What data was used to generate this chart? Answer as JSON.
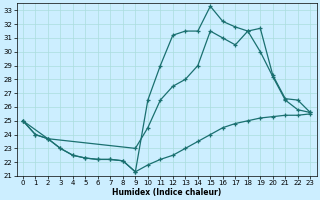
{
  "xlabel": "Humidex (Indice chaleur)",
  "bg_color": "#cceeff",
  "grid_color": "#aadddd",
  "line_color": "#1a7070",
  "xlim": [
    -0.5,
    23.5
  ],
  "ylim": [
    21,
    33.5
  ],
  "yticks": [
    21,
    22,
    23,
    24,
    25,
    26,
    27,
    28,
    29,
    30,
    31,
    32,
    33
  ],
  "xticks": [
    0,
    1,
    2,
    3,
    4,
    5,
    6,
    7,
    8,
    9,
    10,
    11,
    12,
    13,
    14,
    15,
    16,
    17,
    18,
    19,
    20,
    21,
    22,
    23
  ],
  "line1_x": [
    0,
    1,
    2,
    3,
    4,
    5,
    6,
    7,
    8,
    9,
    10,
    11,
    12,
    13,
    14,
    15,
    16,
    17,
    18,
    19,
    20,
    21,
    22,
    23
  ],
  "line1_y": [
    25,
    24,
    23.7,
    23.0,
    22.5,
    22.3,
    22.2,
    22.2,
    22.1,
    21.3,
    21.8,
    22.2,
    22.5,
    23.0,
    23.5,
    24.0,
    24.5,
    24.8,
    25.0,
    25.2,
    25.3,
    25.4,
    25.4,
    25.5
  ],
  "line2_x": [
    0,
    1,
    2,
    3,
    4,
    5,
    6,
    7,
    8,
    9,
    10,
    11,
    12,
    13,
    14,
    15,
    16,
    17,
    18,
    19,
    20,
    21,
    22,
    23
  ],
  "line2_y": [
    25,
    24,
    23.7,
    23.0,
    22.5,
    22.3,
    22.2,
    22.2,
    22.1,
    21.3,
    26.5,
    29.0,
    31.2,
    31.5,
    31.5,
    33.3,
    32.2,
    31.8,
    31.5,
    31.7,
    28.3,
    26.6,
    26.5,
    25.6
  ],
  "line3_x": [
    0,
    2,
    9,
    10,
    11,
    12,
    13,
    14,
    15,
    16,
    17,
    18,
    19,
    20,
    21,
    22,
    23
  ],
  "line3_y": [
    25,
    23.7,
    23.0,
    24.5,
    26.5,
    27.5,
    28.0,
    29.0,
    31.5,
    31.0,
    30.5,
    31.5,
    30.0,
    28.2,
    26.5,
    25.8,
    25.6
  ]
}
